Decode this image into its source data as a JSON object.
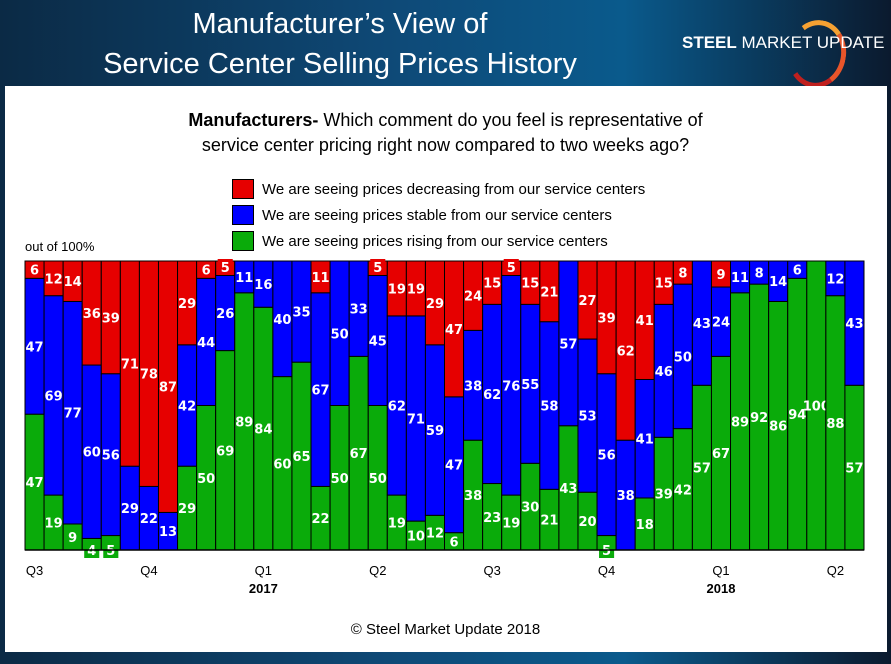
{
  "header": {
    "title_line1": "Manufacturer’s View of",
    "title_line2": "Service Center Selling Prices History",
    "logo": "STEEL MARKET UPDATE"
  },
  "footer": {
    "copyright": "© Steel Market Update 2018"
  },
  "chart_data": {
    "type": "bar",
    "stacked": true,
    "title_bold": "Manufacturers-",
    "title_rest_line1": " Which comment do you feel is representative of",
    "title_line2": "service center pricing right now compared to two weeks ago?",
    "ylabel": "out of 100%",
    "ylim": [
      0,
      100
    ],
    "grid": false,
    "legend_placement": "top",
    "categories": [
      "Q3",
      "",
      "",
      "",
      "",
      "",
      "Q4",
      "",
      "",
      "",
      "",
      "",
      "Q1",
      "",
      "",
      "",
      "",
      "",
      "Q2",
      "",
      "",
      "",
      "",
      "",
      "Q3",
      "",
      "",
      "",
      "",
      "",
      "Q4",
      "",
      "",
      "",
      "",
      "",
      "Q1",
      "",
      "",
      "",
      "",
      "",
      "Q2",
      ""
    ],
    "years": [
      {
        "label": "2017",
        "at": "Q1"
      },
      {
        "label": "2018",
        "at": "Q1"
      }
    ],
    "series": [
      {
        "name": "We are seeing prices rising from our service centers",
        "color": "#0aab0a",
        "values": [
          47,
          19,
          9,
          4,
          5,
          0,
          0,
          0,
          29,
          50,
          69,
          89,
          84,
          60,
          65,
          22,
          50,
          67,
          50,
          19,
          10,
          12,
          6,
          38,
          23,
          19,
          30,
          21,
          43,
          20,
          5,
          0,
          18,
          39,
          42,
          57,
          67,
          89,
          92,
          86,
          94,
          100,
          88,
          57
        ]
      },
      {
        "name": "We are seeing prices stable from our service centers",
        "color": "#0000ff",
        "values": [
          47,
          69,
          77,
          60,
          56,
          29,
          22,
          13,
          42,
          44,
          26,
          11,
          16,
          40,
          35,
          67,
          50,
          33,
          45,
          62,
          71,
          59,
          47,
          38,
          62,
          76,
          55,
          58,
          57,
          53,
          56,
          38,
          41,
          46,
          50,
          43,
          24,
          11,
          8,
          14,
          6,
          0,
          12,
          43
        ]
      },
      {
        "name": "We are seeing prices decreasing from our service centers",
        "color": "#e60000",
        "values": [
          6,
          12,
          14,
          36,
          39,
          71,
          78,
          87,
          29,
          6,
          5,
          0,
          0,
          0,
          0,
          11,
          0,
          0,
          5,
          19,
          19,
          29,
          47,
          24,
          15,
          5,
          15,
          21,
          0,
          27,
          39,
          62,
          41,
          15,
          8,
          0,
          9,
          0,
          0,
          0,
          0,
          0,
          0,
          0
        ]
      }
    ],
    "legend_order": [
      2,
      1,
      0
    ]
  }
}
